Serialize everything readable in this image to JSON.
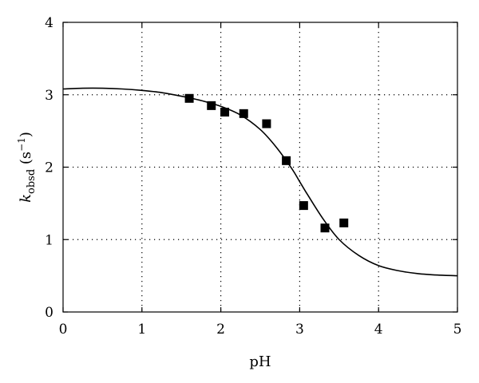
{
  "chart_data": {
    "type": "scatter",
    "xlabel": "pH",
    "ylabel": {
      "base": "k",
      "subscript": "obsd",
      "unit_open": " (s",
      "unit_sup": "−1",
      "unit_close": ")"
    },
    "xlim": [
      0,
      5
    ],
    "ylim": [
      0,
      4
    ],
    "x_ticks": [
      0,
      1,
      2,
      3,
      4,
      5
    ],
    "y_ticks": [
      0,
      1,
      2,
      3,
      4
    ],
    "grid": "dotted",
    "series": [
      {
        "kind": "points",
        "marker": "square",
        "x": [
          1.6,
          1.88,
          2.05,
          2.29,
          2.58,
          2.83,
          3.05,
          3.32,
          3.56
        ],
        "y": [
          2.95,
          2.85,
          2.76,
          2.74,
          2.6,
          2.09,
          1.47,
          1.16,
          1.23
        ]
      },
      {
        "kind": "fit-curve",
        "x": [
          0,
          0.25,
          0.5,
          0.75,
          1.0,
          1.25,
          1.5,
          1.75,
          2.0,
          2.25,
          2.5,
          2.7,
          2.9,
          3.0,
          3.1,
          3.3,
          3.5,
          3.75,
          4.0,
          4.25,
          4.5,
          4.75,
          5.0
        ],
        "y": [
          3.08,
          3.09,
          3.09,
          3.08,
          3.06,
          3.03,
          2.98,
          2.92,
          2.84,
          2.72,
          2.52,
          2.28,
          1.98,
          1.8,
          1.62,
          1.28,
          1.0,
          0.78,
          0.64,
          0.57,
          0.53,
          0.51,
          0.5
        ]
      }
    ]
  }
}
